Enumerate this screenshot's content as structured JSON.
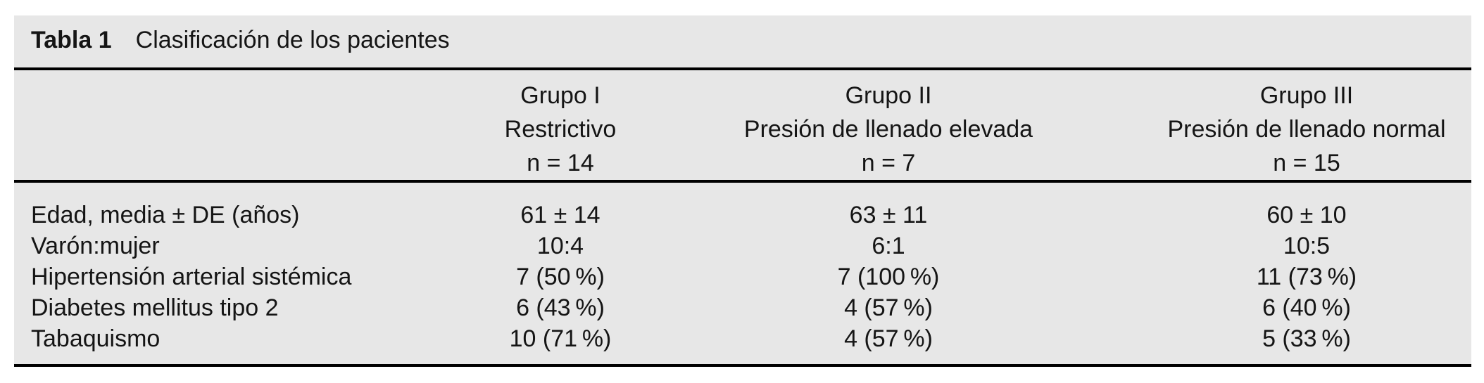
{
  "title": {
    "label": "Tabla 1",
    "text": "Clasificación de los pacientes"
  },
  "columns": [
    {
      "group": "Grupo I",
      "description": "Restrictivo",
      "n": "n = 14"
    },
    {
      "group": "Grupo II",
      "description": "Presión de llenado elevada",
      "n": "n = 7"
    },
    {
      "group": "Grupo III",
      "description": "Presión de llenado normal",
      "n": "n = 15"
    }
  ],
  "rows": [
    {
      "label": "Edad, media ± DE (años)",
      "values": [
        "61 ± 14",
        "63 ± 11",
        "60 ± 10"
      ]
    },
    {
      "label": "Varón:mujer",
      "values": [
        "10:4",
        "6:1",
        "10:5"
      ]
    },
    {
      "label": "Hipertensión arterial sistémica",
      "values": [
        "7 (50 %)",
        "7 (100 %)",
        "11 (73 %)"
      ]
    },
    {
      "label": "Diabetes mellitus tipo 2",
      "values": [
        "6 (43 %)",
        "4 (57 %)",
        "6 (40 %)"
      ]
    },
    {
      "label": "Tabaquismo",
      "values": [
        "10 (71 %)",
        "4 (57 %)",
        "5 (33 %)"
      ]
    }
  ],
  "colors": {
    "table_background": "#e7e7e7",
    "rule": "#000000",
    "text": "#151515",
    "page_background": "#ffffff"
  }
}
